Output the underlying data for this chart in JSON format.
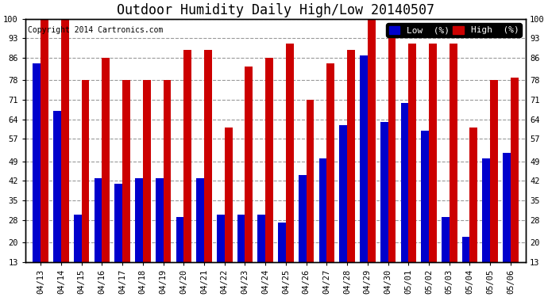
{
  "title": "Outdoor Humidity Daily High/Low 20140507",
  "copyright": "Copyright 2014 Cartronics.com",
  "legend_low": "Low  (%)",
  "legend_high": "High  (%)",
  "categories": [
    "04/13",
    "04/14",
    "04/15",
    "04/16",
    "04/17",
    "04/18",
    "04/19",
    "04/20",
    "04/21",
    "04/22",
    "04/23",
    "04/24",
    "04/25",
    "04/26",
    "04/27",
    "04/28",
    "04/29",
    "04/30",
    "05/01",
    "05/02",
    "05/03",
    "05/04",
    "05/05",
    "05/06"
  ],
  "high_values": [
    100,
    100,
    78,
    86,
    78,
    78,
    78,
    89,
    89,
    61,
    83,
    86,
    91,
    71,
    84,
    89,
    100,
    95,
    91,
    91,
    91,
    61,
    78,
    79
  ],
  "low_values": [
    84,
    67,
    30,
    43,
    41,
    43,
    43,
    29,
    43,
    30,
    30,
    30,
    27,
    44,
    50,
    62,
    87,
    63,
    70,
    60,
    29,
    22,
    50,
    52
  ],
  "ylim_min": 13,
  "ylim_max": 100,
  "yticks": [
    13,
    20,
    28,
    35,
    42,
    49,
    57,
    64,
    71,
    78,
    86,
    93,
    100
  ],
  "bar_width": 0.38,
  "low_color": "#0000cc",
  "high_color": "#cc0000",
  "bg_color": "#ffffff",
  "grid_color": "#999999",
  "title_fontsize": 12,
  "tick_fontsize": 7.5,
  "legend_fontsize": 8,
  "copyright_fontsize": 7
}
